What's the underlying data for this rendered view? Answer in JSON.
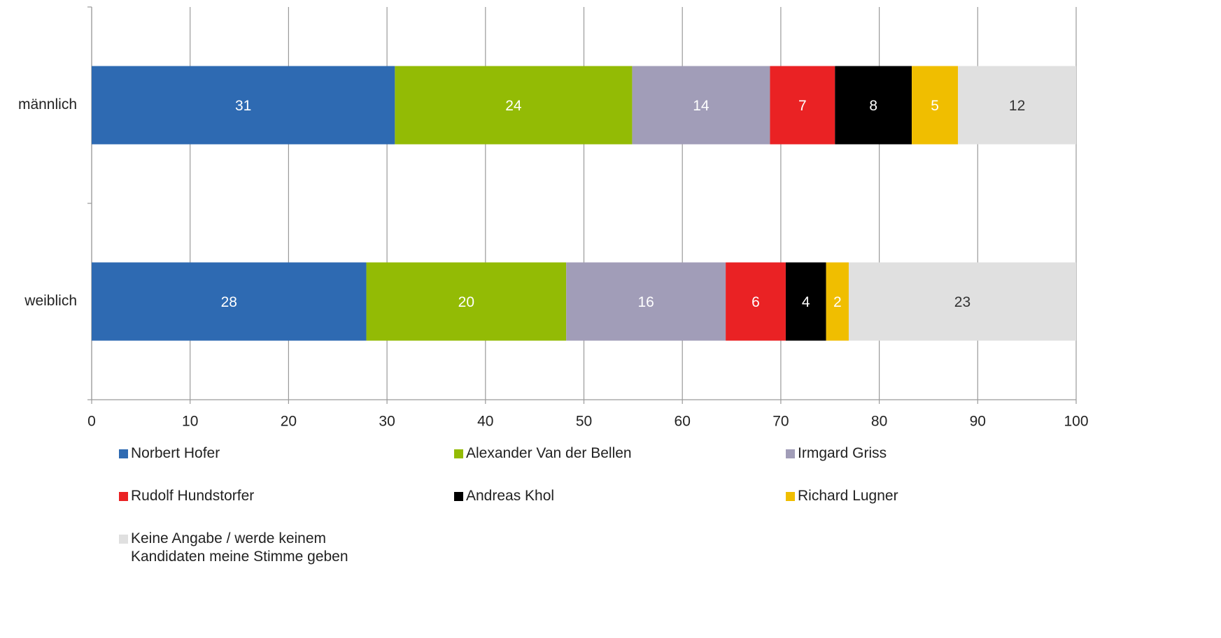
{
  "chart_data": {
    "type": "stacked-bar-horizontal",
    "categories": [
      "männlich",
      "weiblich"
    ],
    "series": [
      {
        "name": "Norbert Hofer",
        "color": "#2e6ab2",
        "values": [
          30.8,
          27.9
        ],
        "value_labels": [
          "31",
          "28"
        ]
      },
      {
        "name": "Alexander Van der Bellen",
        "color": "#93bb05",
        "values": [
          24.1,
          20.3
        ],
        "value_labels": [
          "24",
          "20"
        ]
      },
      {
        "name": "Irmgard Griss",
        "color": "#a19db8",
        "values": [
          14.0,
          16.2
        ],
        "value_labels": [
          "14",
          "16"
        ]
      },
      {
        "name": "Rudolf Hundstorfer",
        "color": "#ea2224",
        "values": [
          6.6,
          6.1
        ],
        "value_labels": [
          "7",
          "6"
        ]
      },
      {
        "name": "Andreas Khol",
        "color": "#000000",
        "values": [
          7.8,
          4.1
        ],
        "value_labels": [
          "8",
          "4"
        ]
      },
      {
        "name": "Richard Lugner",
        "color": "#f0be00",
        "values": [
          4.7,
          2.3
        ],
        "value_labels": [
          "5",
          "2"
        ]
      },
      {
        "name": "Keine Angabe / werde keinem Kandidaten meine Stimme geben",
        "color": "#e0e0e0",
        "values": [
          12.0,
          23.1
        ],
        "value_labels": [
          "12",
          "23"
        ]
      }
    ],
    "xlim": [
      0,
      100
    ],
    "xticks": [
      0,
      10,
      20,
      30,
      40,
      50,
      60,
      70,
      80,
      90,
      100
    ],
    "grid": true
  }
}
